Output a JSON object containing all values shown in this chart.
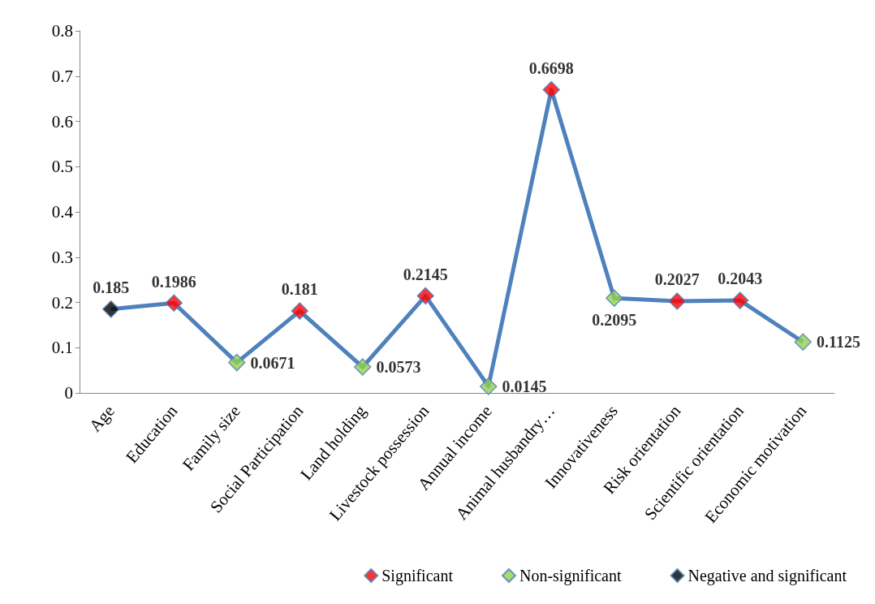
{
  "chart_data": {
    "type": "line",
    "categories": [
      "Age",
      "Education",
      "Family size",
      "Social Participation",
      "Land holding",
      "Livestock possession",
      "Annual income",
      "Animal husbandry…",
      "Innovativeness",
      "Risk orientation",
      "Scientific orientation",
      "Economic motivation"
    ],
    "series": [
      {
        "type": "line",
        "marker": "none",
        "color": "#4f81bd",
        "values": [
          0.185,
          0.1986,
          0.0671,
          0.181,
          0.0573,
          0.2145,
          0.0145,
          0.6698,
          0.2095,
          0.2027,
          0.2043,
          0.1125
        ]
      },
      {
        "type": "scatter",
        "name": "Significant",
        "color": "#ff0000",
        "values": [
          null,
          0.1986,
          null,
          0.181,
          null,
          0.2145,
          null,
          0.6698,
          null,
          0.2027,
          0.2043,
          null
        ],
        "value_labels": [
          null,
          "0.1986",
          null,
          "0.181",
          null,
          "0.2145",
          null,
          "0.6698",
          null,
          "0.2027",
          "0.2043",
          null
        ]
      },
      {
        "type": "scatter",
        "name": "Non-significant",
        "color": "#92d050",
        "values": [
          null,
          null,
          0.0671,
          null,
          0.0573,
          null,
          0.0145,
          null,
          0.2095,
          null,
          null,
          0.1125
        ],
        "value_labels": [
          null,
          null,
          "0.0671",
          null,
          "0.0573",
          null,
          "0.0145",
          null,
          "0.2095",
          null,
          null,
          "0.1125"
        ]
      },
      {
        "type": "scatter",
        "name": "Negative and significant",
        "color": "#000000",
        "values": [
          0.185,
          null,
          null,
          null,
          null,
          null,
          null,
          null,
          null,
          null,
          null,
          null
        ],
        "value_labels": [
          "0.185",
          null,
          null,
          null,
          null,
          null,
          null,
          null,
          null,
          null,
          null,
          null
        ]
      }
    ],
    "ylim": [
      0,
      0.8
    ],
    "yticks": [
      0,
      0.1,
      0.2,
      0.3,
      0.4,
      0.5,
      0.6,
      0.7,
      0.8
    ],
    "marker": "diamond",
    "grid": false,
    "legend": "bottom"
  }
}
